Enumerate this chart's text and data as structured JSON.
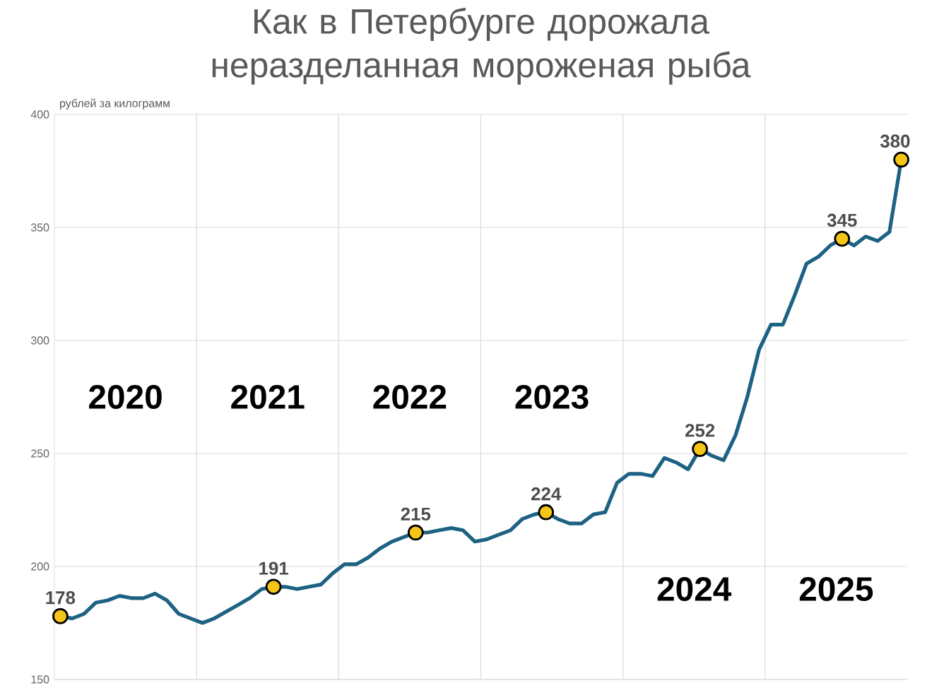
{
  "chart_data": {
    "type": "line",
    "title": "Как в Петербурге дорожала неразделанная мороженая рыба",
    "ylabel": "рублей за килограмм",
    "categories": [
      null,
      null,
      null,
      null,
      null,
      null,
      null,
      null,
      null,
      null,
      null,
      null,
      null,
      null,
      null,
      null,
      null,
      null,
      null,
      null,
      null,
      null,
      null,
      null,
      null,
      null,
      null,
      null,
      null,
      null,
      null,
      null,
      null,
      null,
      null,
      null,
      null,
      null,
      null,
      null,
      null,
      null,
      null,
      null,
      null,
      null,
      null,
      null,
      null,
      null,
      null,
      null,
      null,
      null,
      null,
      null,
      null,
      null,
      null,
      null,
      null,
      null,
      null,
      null,
      null,
      null,
      null,
      null,
      null,
      null,
      null,
      null
    ],
    "marker": "circle",
    "ylim": [
      150,
      400
    ],
    "yticks": [
      150,
      200,
      250,
      300,
      350,
      400
    ],
    "grid": true,
    "tick_labels": "y",
    "series": [
      {
        "color": "#1d6283",
        "marker": "none",
        "values": [
          178,
          177,
          179,
          184,
          185,
          187,
          186,
          186,
          188,
          185,
          179,
          177,
          175,
          177,
          180,
          183,
          186,
          190,
          191,
          191,
          190,
          191,
          192,
          197,
          201,
          201,
          204,
          208,
          211,
          213,
          215,
          215,
          216,
          217,
          216,
          211,
          212,
          214,
          216,
          221,
          223,
          224,
          221,
          219,
          219,
          223,
          224,
          237,
          241,
          241,
          240,
          248,
          246,
          243,
          252,
          249,
          247,
          258,
          275,
          296,
          307,
          307,
          320,
          334,
          337,
          342,
          345,
          342,
          346,
          344,
          348,
          380
        ]
      },
      {
        "type": "scatter",
        "color": "#f5c518",
        "values": [
          178,
          null,
          null,
          null,
          null,
          null,
          null,
          null,
          null,
          null,
          null,
          null,
          null,
          null,
          null,
          null,
          null,
          null,
          191,
          null,
          null,
          null,
          null,
          null,
          null,
          null,
          null,
          null,
          null,
          null,
          215,
          null,
          null,
          null,
          null,
          null,
          null,
          null,
          null,
          null,
          null,
          224,
          null,
          null,
          null,
          null,
          null,
          null,
          null,
          null,
          null,
          null,
          null,
          null,
          252,
          null,
          null,
          null,
          null,
          null,
          null,
          null,
          null,
          null,
          null,
          null,
          345,
          null,
          null,
          null,
          null,
          380
        ],
        "value_labels": [
          "178",
          null,
          null,
          null,
          null,
          null,
          null,
          null,
          null,
          null,
          null,
          null,
          null,
          null,
          null,
          null,
          null,
          null,
          "191",
          null,
          null,
          null,
          null,
          null,
          null,
          null,
          null,
          null,
          null,
          null,
          "215",
          null,
          null,
          null,
          null,
          null,
          null,
          null,
          null,
          null,
          null,
          "224",
          null,
          null,
          null,
          null,
          null,
          null,
          null,
          null,
          null,
          null,
          null,
          null,
          "252",
          null,
          null,
          null,
          null,
          null,
          null,
          null,
          null,
          null,
          null,
          null,
          "345",
          null,
          null,
          null,
          null,
          "380"
        ]
      }
    ],
    "annotations": [
      "2020",
      "2021",
      "2022",
      "2023",
      "2024",
      "2025"
    ]
  }
}
